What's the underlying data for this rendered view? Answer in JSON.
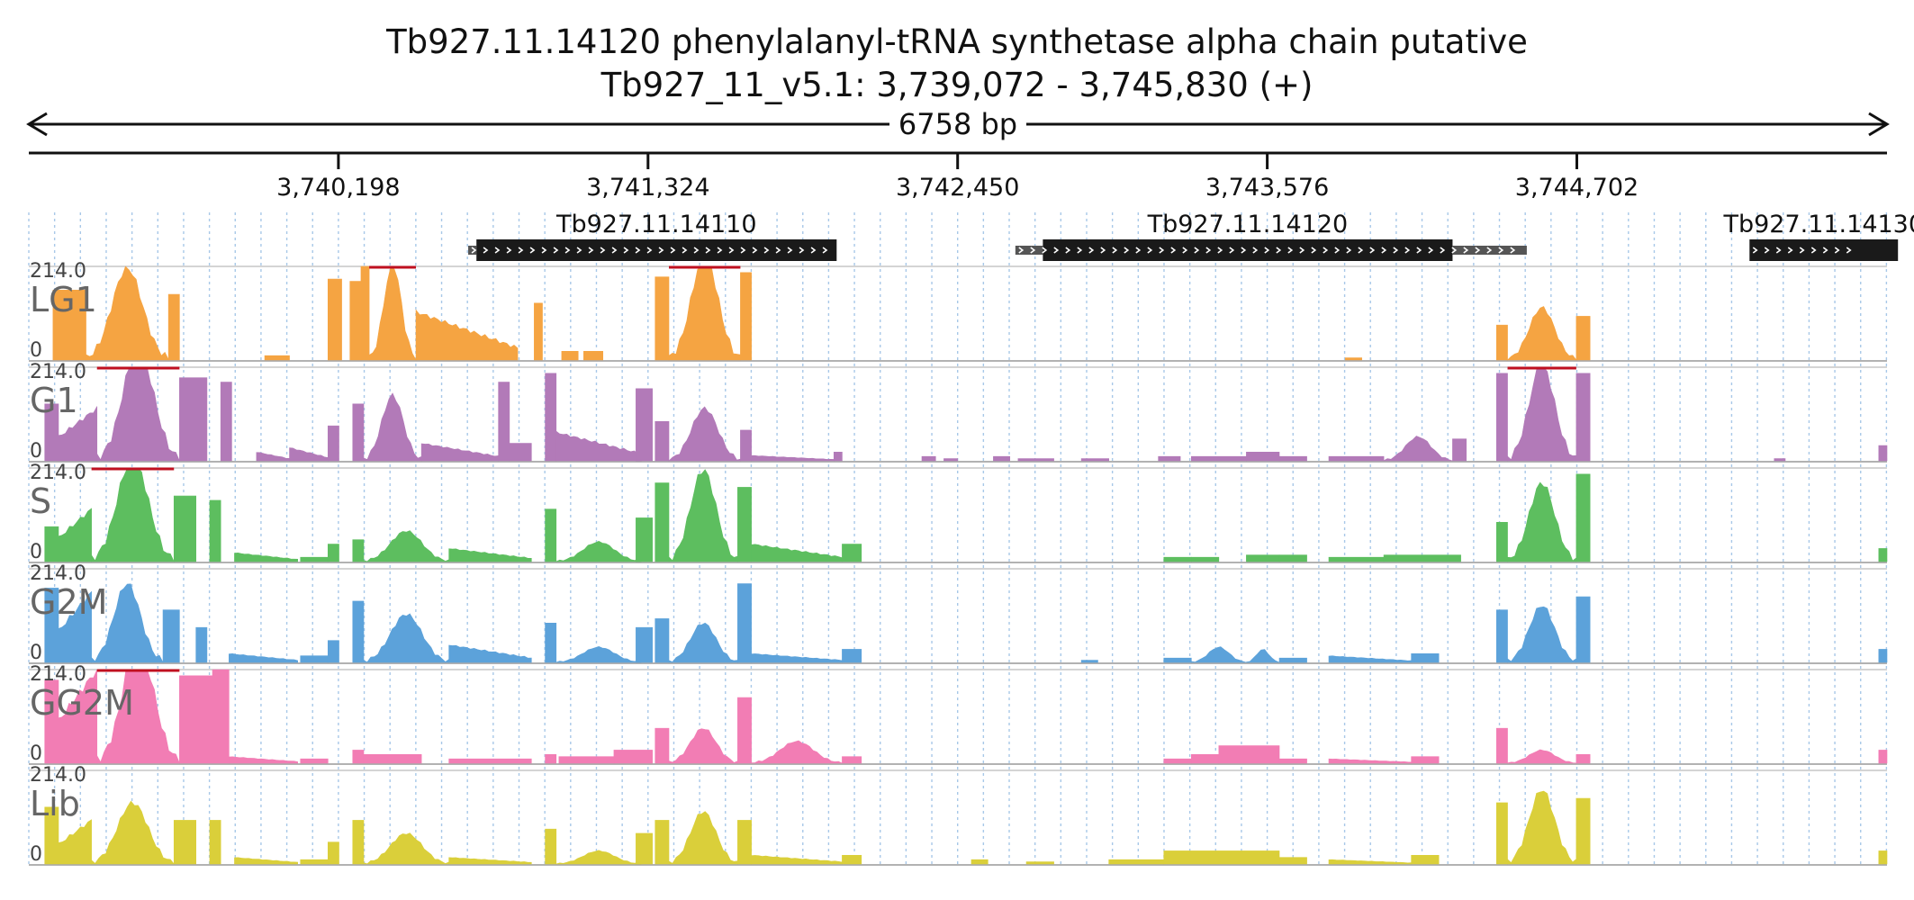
{
  "title_line1": "Tb927.11.14120  phenylalanyl-tRNA synthetase alpha chain  putative",
  "title_line2": "Tb927_11_v5.1: 3,739,072 - 3,745,830 (+)",
  "span_label": "6758 bp",
  "chart_data": {
    "type": "area",
    "region": {
      "start": 3739072,
      "end": 3745830,
      "strand": "+"
    },
    "x_ticks": [
      {
        "pos": 3740198,
        "label": "3,740,198"
      },
      {
        "pos": 3741324,
        "label": "3,741,324"
      },
      {
        "pos": 3742450,
        "label": "3,742,450"
      },
      {
        "pos": 3743576,
        "label": "3,743,576"
      },
      {
        "pos": 3744702,
        "label": "3,744,702"
      }
    ],
    "genes": [
      {
        "name": "Tb927.11.14110",
        "utr5_start": 3740670,
        "cds_start": 3740700,
        "cds_end": 3742010,
        "utr3_end": 3742010
      },
      {
        "name": "Tb927.11.14120",
        "utr5_start": 3742660,
        "cds_start": 3742760,
        "cds_end": 3744250,
        "utr3_end": 3744520
      },
      {
        "name": "Tb927.11.14130",
        "utr5_start": 3745330,
        "cds_start": 3745330,
        "cds_end": 3745870,
        "utr3_end": 3745980
      }
    ],
    "y_range": [
      0,
      214.0
    ],
    "y_max_label": "214.0",
    "y_min_label": "0",
    "tracks": [
      {
        "name": "LG1",
        "color": "#F5A442"
      },
      {
        "name": "G1",
        "color": "#B27AB8"
      },
      {
        "name": "S",
        "color": "#5DBE5F"
      },
      {
        "name": "G2M",
        "color": "#5CA2DA"
      },
      {
        "name": "GG2M",
        "color": "#F27DB4"
      },
      {
        "name": "Lib",
        "color": "#DACF3A"
      }
    ],
    "profiles": {
      "LG1": [
        [
          3739160,
          3739280,
          160,
          "block"
        ],
        [
          3739280,
          3739580,
          210,
          "gauss"
        ],
        [
          3739580,
          3739620,
          150,
          "block"
        ],
        [
          3739930,
          3740020,
          10,
          "block"
        ],
        [
          3740160,
          3740210,
          185,
          "block"
        ],
        [
          3740240,
          3740280,
          180,
          "block"
        ],
        [
          3740280,
          3740310,
          214,
          "block"
        ],
        [
          3740310,
          3740480,
          220,
          "gauss"
        ],
        [
          3740480,
          3740850,
          110,
          "decay"
        ],
        [
          3740910,
          3740940,
          130,
          "block"
        ],
        [
          3741010,
          3741070,
          20,
          "block"
        ],
        [
          3741090,
          3741160,
          20,
          "block"
        ],
        [
          3741350,
          3741400,
          190,
          "block"
        ],
        [
          3741400,
          3741660,
          240,
          "gauss"
        ],
        [
          3741660,
          3741700,
          200,
          "block"
        ],
        [
          3743860,
          3743920,
          5,
          "block"
        ],
        [
          3744410,
          3744450,
          80,
          "block"
        ],
        [
          3744450,
          3744700,
          120,
          "gauss"
        ],
        [
          3744700,
          3744750,
          100,
          "block"
        ]
      ],
      "G1": [
        [
          3739130,
          3739180,
          130,
          "block"
        ],
        [
          3739180,
          3739320,
          120,
          "rise"
        ],
        [
          3739320,
          3739620,
          260,
          "gauss"
        ],
        [
          3739620,
          3739720,
          190,
          "block"
        ],
        [
          3739770,
          3739810,
          180,
          "block"
        ],
        [
          3739900,
          3740020,
          20,
          "decay"
        ],
        [
          3740020,
          3740160,
          30,
          "decay"
        ],
        [
          3740160,
          3740200,
          80,
          "block"
        ],
        [
          3740250,
          3740290,
          130,
          "block"
        ],
        [
          3740290,
          3740500,
          150,
          "gauss"
        ],
        [
          3740500,
          3740780,
          40,
          "decay"
        ],
        [
          3740780,
          3740820,
          180,
          "block"
        ],
        [
          3740820,
          3740900,
          40,
          "block"
        ],
        [
          3740950,
          3740990,
          200,
          "block"
        ],
        [
          3740990,
          3741300,
          65,
          "decay"
        ],
        [
          3741280,
          3741340,
          165,
          "block"
        ],
        [
          3741350,
          3741400,
          90,
          "block"
        ],
        [
          3741400,
          3741660,
          120,
          "gauss"
        ],
        [
          3741660,
          3741700,
          70,
          "block"
        ],
        [
          3741700,
          3742000,
          12,
          "decay"
        ],
        [
          3742000,
          3742030,
          20,
          "block"
        ],
        [
          3742320,
          3742370,
          10,
          "block"
        ],
        [
          3742400,
          3742450,
          5,
          "block"
        ],
        [
          3742580,
          3742640,
          10,
          "block"
        ],
        [
          3742670,
          3742800,
          5,
          "block"
        ],
        [
          3742900,
          3743000,
          5,
          "block"
        ],
        [
          3743180,
          3743260,
          10,
          "block"
        ],
        [
          3743300,
          3743500,
          10,
          "block"
        ],
        [
          3743500,
          3743620,
          20,
          "block"
        ],
        [
          3743620,
          3743720,
          10,
          "block"
        ],
        [
          3743800,
          3744000,
          10,
          "block"
        ],
        [
          3744000,
          3744250,
          55,
          "gauss"
        ],
        [
          3744250,
          3744300,
          50,
          "block"
        ],
        [
          3744410,
          3744450,
          200,
          "block"
        ],
        [
          3744450,
          3744700,
          220,
          "gauss"
        ],
        [
          3744700,
          3744750,
          200,
          "block"
        ],
        [
          3745420,
          3745460,
          5,
          "block"
        ],
        [
          3745800,
          3745830,
          35,
          "block"
        ]
      ],
      "S": [
        [
          3739130,
          3739180,
          80,
          "block"
        ],
        [
          3739180,
          3739300,
          120,
          "rise"
        ],
        [
          3739300,
          3739600,
          240,
          "gauss"
        ],
        [
          3739600,
          3739680,
          150,
          "block"
        ],
        [
          3739730,
          3739770,
          140,
          "block"
        ],
        [
          3739820,
          3740050,
          20,
          "decay"
        ],
        [
          3740060,
          3740160,
          10,
          "block"
        ],
        [
          3740160,
          3740200,
          40,
          "block"
        ],
        [
          3740250,
          3740290,
          50,
          "block"
        ],
        [
          3740290,
          3740600,
          70,
          "gauss"
        ],
        [
          3740600,
          3740900,
          30,
          "decay"
        ],
        [
          3740950,
          3740990,
          120,
          "block"
        ],
        [
          3740990,
          3741300,
          45,
          "gauss"
        ],
        [
          3741280,
          3741340,
          100,
          "block"
        ],
        [
          3741350,
          3741400,
          180,
          "block"
        ],
        [
          3741400,
          3741650,
          210,
          "gauss"
        ],
        [
          3741650,
          3741700,
          170,
          "block"
        ],
        [
          3741700,
          3742030,
          40,
          "decay"
        ],
        [
          3742030,
          3742100,
          40,
          "block"
        ],
        [
          3743200,
          3743300,
          10,
          "block"
        ],
        [
          3743300,
          3743400,
          10,
          "block"
        ],
        [
          3743500,
          3743620,
          15,
          "block"
        ],
        [
          3743620,
          3743720,
          15,
          "block"
        ],
        [
          3743800,
          3744000,
          10,
          "block"
        ],
        [
          3744000,
          3744280,
          15,
          "block"
        ],
        [
          3744410,
          3744450,
          90,
          "block"
        ],
        [
          3744450,
          3744700,
          180,
          "gauss"
        ],
        [
          3744700,
          3744750,
          200,
          "block"
        ],
        [
          3745800,
          3745830,
          30,
          "block"
        ]
      ],
      "G2M": [
        [
          3739130,
          3739180,
          170,
          "block"
        ],
        [
          3739180,
          3739300,
          160,
          "rise"
        ],
        [
          3739300,
          3739560,
          180,
          "gauss"
        ],
        [
          3739560,
          3739620,
          120,
          "block"
        ],
        [
          3739680,
          3739720,
          80,
          "block"
        ],
        [
          3739800,
          3740050,
          20,
          "decay"
        ],
        [
          3740060,
          3740160,
          15,
          "block"
        ],
        [
          3740160,
          3740200,
          50,
          "block"
        ],
        [
          3740250,
          3740290,
          140,
          "block"
        ],
        [
          3740290,
          3740600,
          110,
          "gauss"
        ],
        [
          3740600,
          3740900,
          40,
          "decay"
        ],
        [
          3740950,
          3740990,
          90,
          "block"
        ],
        [
          3740990,
          3741300,
          35,
          "gauss"
        ],
        [
          3741280,
          3741340,
          80,
          "block"
        ],
        [
          3741350,
          3741400,
          100,
          "block"
        ],
        [
          3741400,
          3741650,
          90,
          "gauss"
        ],
        [
          3741650,
          3741700,
          180,
          "block"
        ],
        [
          3741700,
          3742030,
          20,
          "decay"
        ],
        [
          3742030,
          3742100,
          30,
          "block"
        ],
        [
          3742900,
          3742960,
          5,
          "block"
        ],
        [
          3743200,
          3743300,
          10,
          "block"
        ],
        [
          3743300,
          3743500,
          35,
          "gauss"
        ],
        [
          3743500,
          3743620,
          30,
          "gauss"
        ],
        [
          3743620,
          3743720,
          10,
          "block"
        ],
        [
          3743800,
          3744100,
          15,
          "decay"
        ],
        [
          3744100,
          3744200,
          20,
          "block"
        ],
        [
          3744410,
          3744450,
          120,
          "block"
        ],
        [
          3744450,
          3744700,
          130,
          "gauss"
        ],
        [
          3744700,
          3744750,
          150,
          "block"
        ],
        [
          3745800,
          3745830,
          30,
          "block"
        ]
      ],
      "GG2M": [
        [
          3739130,
          3739180,
          190,
          "block"
        ],
        [
          3739180,
          3739320,
          214,
          "rise"
        ],
        [
          3739320,
          3739620,
          280,
          "gauss"
        ],
        [
          3739620,
          3739740,
          200,
          "block"
        ],
        [
          3739740,
          3739800,
          214,
          "block"
        ],
        [
          3739800,
          3740050,
          15,
          "decay"
        ],
        [
          3740060,
          3740160,
          10,
          "block"
        ],
        [
          3740250,
          3740290,
          30,
          "block"
        ],
        [
          3740290,
          3740500,
          20,
          "block"
        ],
        [
          3740600,
          3740900,
          10,
          "block"
        ],
        [
          3740950,
          3740990,
          20,
          "block"
        ],
        [
          3741000,
          3741200,
          15,
          "block"
        ],
        [
          3741200,
          3741340,
          30,
          "block"
        ],
        [
          3741350,
          3741400,
          80,
          "block"
        ],
        [
          3741400,
          3741650,
          80,
          "gauss"
        ],
        [
          3741650,
          3741700,
          150,
          "block"
        ],
        [
          3741700,
          3742030,
          50,
          "gauss"
        ],
        [
          3742030,
          3742100,
          15,
          "block"
        ],
        [
          3743200,
          3743300,
          10,
          "block"
        ],
        [
          3743300,
          3743400,
          20,
          "block"
        ],
        [
          3743400,
          3743620,
          40,
          "block"
        ],
        [
          3743620,
          3743720,
          10,
          "block"
        ],
        [
          3743800,
          3744100,
          10,
          "decay"
        ],
        [
          3744100,
          3744200,
          15,
          "block"
        ],
        [
          3744410,
          3744450,
          80,
          "block"
        ],
        [
          3744450,
          3744700,
          30,
          "gauss"
        ],
        [
          3744700,
          3744750,
          20,
          "block"
        ],
        [
          3745800,
          3745830,
          30,
          "block"
        ]
      ],
      "Lib": [
        [
          3739130,
          3739180,
          130,
          "block"
        ],
        [
          3739180,
          3739300,
          100,
          "rise"
        ],
        [
          3739300,
          3739600,
          140,
          "gauss"
        ],
        [
          3739600,
          3739680,
          100,
          "block"
        ],
        [
          3739730,
          3739770,
          100,
          "block"
        ],
        [
          3739820,
          3740050,
          15,
          "decay"
        ],
        [
          3740060,
          3740160,
          10,
          "block"
        ],
        [
          3740160,
          3740200,
          50,
          "block"
        ],
        [
          3740250,
          3740290,
          100,
          "block"
        ],
        [
          3740290,
          3740600,
          70,
          "gauss"
        ],
        [
          3740600,
          3740900,
          15,
          "decay"
        ],
        [
          3740950,
          3740990,
          80,
          "block"
        ],
        [
          3740990,
          3741300,
          30,
          "gauss"
        ],
        [
          3741280,
          3741340,
          70,
          "block"
        ],
        [
          3741350,
          3741400,
          100,
          "block"
        ],
        [
          3741400,
          3741650,
          120,
          "gauss"
        ],
        [
          3741650,
          3741700,
          100,
          "block"
        ],
        [
          3741700,
          3742030,
          20,
          "decay"
        ],
        [
          3742030,
          3742100,
          20,
          "block"
        ],
        [
          3742500,
          3742560,
          10,
          "block"
        ],
        [
          3742700,
          3742800,
          5,
          "block"
        ],
        [
          3743000,
          3743200,
          10,
          "block"
        ],
        [
          3743200,
          3743620,
          30,
          "block"
        ],
        [
          3743620,
          3743720,
          15,
          "block"
        ],
        [
          3743800,
          3744100,
          10,
          "decay"
        ],
        [
          3744100,
          3744200,
          20,
          "block"
        ],
        [
          3744410,
          3744450,
          140,
          "block"
        ],
        [
          3744450,
          3744700,
          170,
          "gauss"
        ],
        [
          3744700,
          3744750,
          150,
          "block"
        ],
        [
          3745800,
          3745830,
          30,
          "block"
        ]
      ]
    }
  }
}
